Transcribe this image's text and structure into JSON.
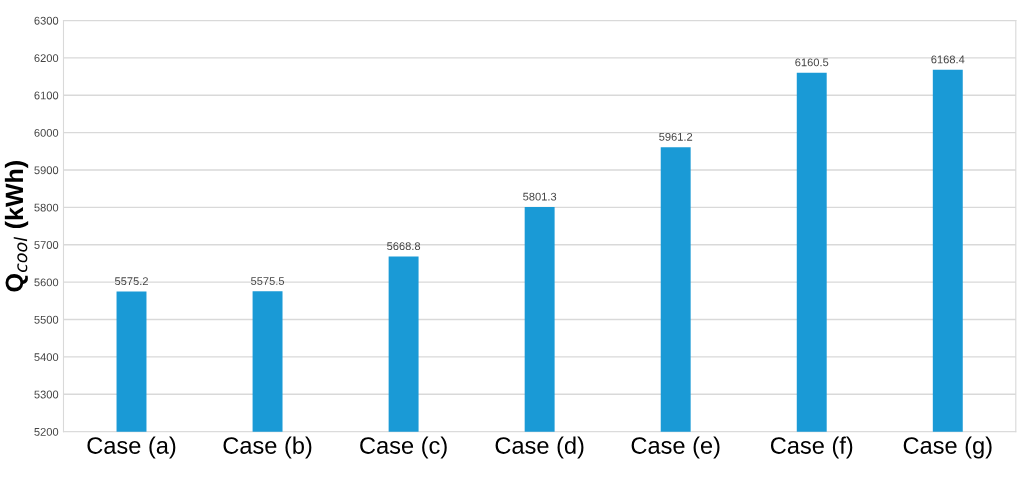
{
  "chart_data": {
    "type": "bar",
    "ylabel": "Q$_{cool}$ (kWh)",
    "categories": [
      "Case (a)",
      "Case (b)",
      "Case (c)",
      "Case (d)",
      "Case (e)",
      "Case (f)",
      "Case (g)"
    ],
    "values": [
      5575.2,
      5575.5,
      5668.8,
      5801.3,
      5961.2,
      6160.5,
      6168.4
    ],
    "color": "#1a9ad6",
    "ylim": [
      5200,
      6300
    ],
    "yticks": [
      5200,
      5300,
      5400,
      5500,
      5600,
      5700,
      5800,
      5900,
      6000,
      6100,
      6200,
      6300
    ],
    "grid": "y",
    "data_labels": true,
    "legend": false
  }
}
